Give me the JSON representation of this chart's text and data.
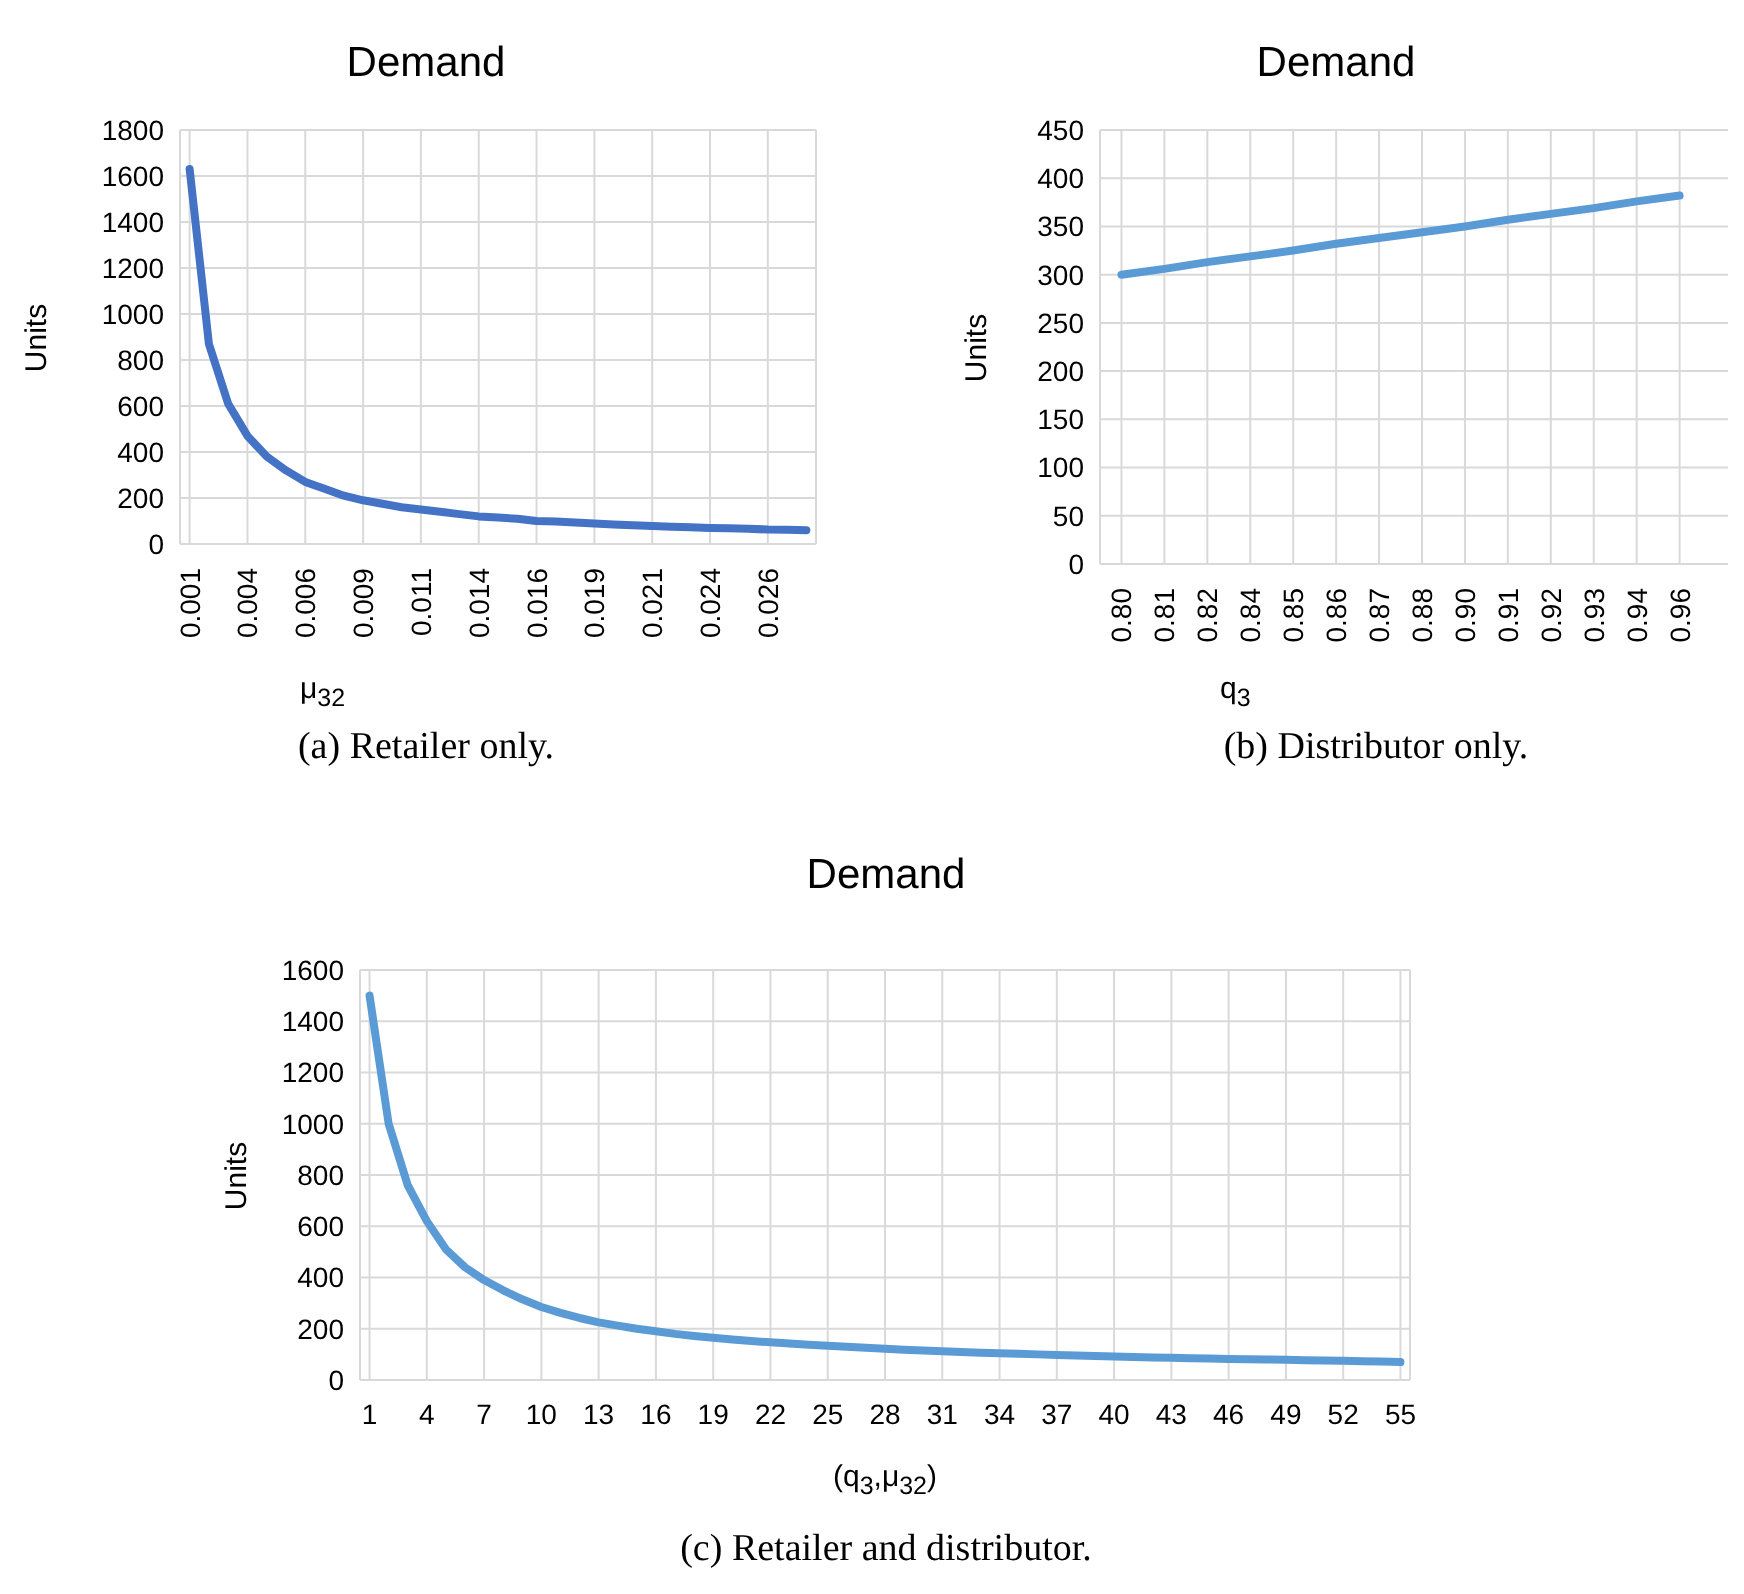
{
  "chart_data": [
    {
      "type": "line",
      "title": "Demand",
      "xlabel": "μ$_{32}$",
      "ylabel": "Units",
      "annotations": [
        "(a) Retailer only."
      ],
      "categories": [
        "0.001",
        null,
        null,
        "0.004",
        null,
        null,
        "0.006",
        null,
        null,
        "0.009",
        null,
        null,
        "0.011",
        null,
        null,
        "0.014",
        null,
        null,
        "0.016",
        null,
        null,
        "0.019",
        null,
        null,
        "0.021",
        null,
        null,
        "0.024",
        null,
        null,
        "0.026",
        null,
        null
      ],
      "series": [
        {
          "color": "#4472c4",
          "values": [
            1630,
            870,
            610,
            470,
            380,
            320,
            270,
            240,
            210,
            190,
            175,
            160,
            150,
            140,
            130,
            120,
            115,
            110,
            100,
            98,
            93,
            89,
            85,
            82,
            78,
            75,
            73,
            70,
            68,
            66,
            63,
            62,
            60
          ]
        }
      ],
      "ylim": [
        0,
        1800
      ],
      "yticks": [
        0,
        200,
        400,
        600,
        800,
        1000,
        1200,
        1400,
        1600,
        1800
      ],
      "grid": true,
      "marker": "none",
      "line_style": "solid"
    },
    {
      "type": "line",
      "title": "Demand",
      "xlabel": "q$_{3}$",
      "ylabel": "Units",
      "annotations": [
        "(b) Distributor only."
      ],
      "categories": [
        "0.80",
        "0.81",
        "0.82",
        "0.84",
        "0.85",
        "0.86",
        "0.87",
        "0.88",
        "0.90",
        "0.91",
        "0.92",
        "0.93",
        "0.94",
        "0.96"
      ],
      "series": [
        {
          "color": "#5b9bd5",
          "values": [
            300,
            306,
            313,
            319,
            325,
            332,
            338,
            344,
            350,
            357,
            363,
            369,
            376,
            382
          ]
        }
      ],
      "ylim": [
        0,
        450
      ],
      "yticks": [
        0,
        50,
        100,
        150,
        200,
        250,
        300,
        350,
        400,
        450
      ],
      "grid": true,
      "marker": "none",
      "line_style": "solid"
    },
    {
      "type": "line",
      "title": "Demand",
      "xlabel": "(q$_{3}$,μ$_{32}$)",
      "ylabel": "Units",
      "annotations": [
        "(c) Retailer and distributor."
      ],
      "categories": [
        "1",
        null,
        null,
        "4",
        null,
        null,
        "7",
        null,
        null,
        "10",
        null,
        null,
        "13",
        null,
        null,
        "16",
        null,
        null,
        "19",
        null,
        null,
        "22",
        null,
        null,
        "25",
        null,
        null,
        "28",
        null,
        null,
        "31",
        null,
        null,
        "34",
        null,
        null,
        "37",
        null,
        null,
        "40",
        null,
        null,
        "43",
        null,
        null,
        "46",
        null,
        null,
        "49",
        null,
        null,
        "52",
        null,
        null,
        "55"
      ],
      "series": [
        {
          "color": "#5b9bd5",
          "values": [
            1500,
            1000,
            760,
            620,
            510,
            440,
            390,
            350,
            315,
            285,
            262,
            242,
            225,
            212,
            200,
            190,
            180,
            172,
            165,
            158,
            152,
            147,
            142,
            138,
            134,
            130,
            126,
            122,
            118,
            115,
            112,
            109,
            106,
            104,
            102,
            100,
            98,
            96,
            94,
            92,
            90,
            88,
            87,
            85,
            84,
            82,
            81,
            80,
            79,
            77,
            76,
            75,
            73,
            72,
            70
          ]
        }
      ],
      "ylim": [
        0,
        1600
      ],
      "yticks": [
        0,
        200,
        400,
        600,
        800,
        1000,
        1200,
        1400,
        1600
      ],
      "grid": true,
      "marker": "none",
      "line_style": "solid"
    }
  ]
}
